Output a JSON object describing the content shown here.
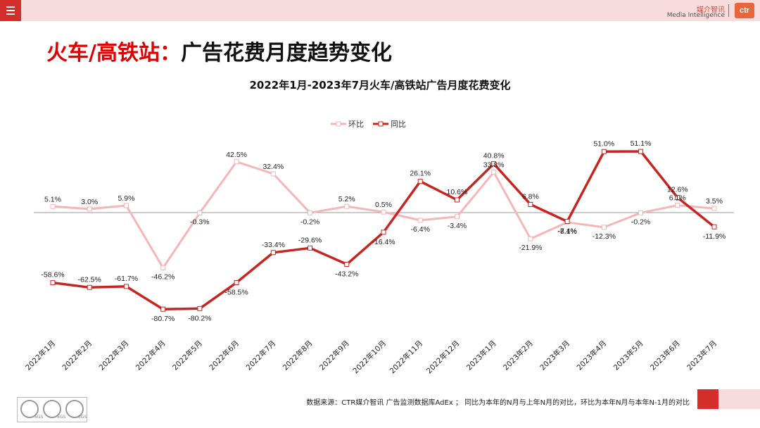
{
  "header": {
    "brand_cn": "媒介智讯",
    "brand_en": "Media Intelligence",
    "logo_text": "ctr",
    "title_red": "火车/高铁站：",
    "title_black": "广告花费月度趋势变化"
  },
  "footer": {
    "note": "数据来源：CTR媒介智讯 广告监测数据库AdEx ； 同比为本年的N月与上年N月的对比，环比为本年N月与本年N-1月的对比",
    "seal_label": "SGS"
  },
  "colors": {
    "accent": "#d42e2a",
    "pink": "#f8dcdc",
    "mom": "#f4b6b6",
    "yoy": "#c82420"
  },
  "chart_data": {
    "type": "line",
    "title": "2022年1月-2023年7月火车/高铁站广告月度花费变化",
    "categories": [
      "2022年1月",
      "2022年2月",
      "2022年3月",
      "2022年4月",
      "2022年5月",
      "2022年6月",
      "2022年7月",
      "2022年8月",
      "2022年9月",
      "2022年10月",
      "2022年11月",
      "2022年12月",
      "2023年1月",
      "2023年2月",
      "2023年3月",
      "2023年4月",
      "2023年5月",
      "2023年6月",
      "2023年7月"
    ],
    "series": [
      {
        "name": "环比",
        "values": [
          5.1,
          3.0,
          5.9,
          -46.2,
          -0.3,
          42.5,
          32.4,
          -0.2,
          5.2,
          0.5,
          -6.4,
          -3.4,
          33.8,
          -21.9,
          -8.1,
          -12.3,
          -0.2,
          6.1,
          3.5
        ],
        "labels": [
          "5.1%",
          "3.0%",
          "5.9%",
          "-46.2%",
          "-0.3%",
          "42.5%",
          "32.4%",
          "-0.2%",
          "5.2%",
          "0.5%",
          "-6.4%",
          "-3.4%",
          "33.8%",
          "-21.9%",
          "-8.1%",
          "-12.3%",
          "-0.2%",
          "6.1%",
          "3.5%"
        ]
      },
      {
        "name": "同比",
        "values": [
          -58.6,
          -62.5,
          -61.7,
          -80.7,
          -80.2,
          -58.5,
          -33.4,
          -29.6,
          -43.2,
          -16.4,
          26.1,
          10.6,
          40.8,
          6.8,
          -7.4,
          51.0,
          51.1,
          12.6,
          -11.9
        ],
        "labels": [
          "-58.6%",
          "-62.5%",
          "-61.7%",
          "-80.7%",
          "-80.2%",
          "-58.5%",
          "-33.4%",
          "-29.6%",
          "-43.2%",
          "-16.4%",
          "26.1%",
          "10.6%",
          "40.8%",
          "6.8%",
          "-7.4%",
          "51.0%",
          "51.1%",
          "12.6%",
          "-11.9%"
        ]
      }
    ],
    "xlabel": "",
    "ylabel": "",
    "ylim": [
      -90,
      60
    ],
    "grid": false,
    "legend": "top-center"
  }
}
